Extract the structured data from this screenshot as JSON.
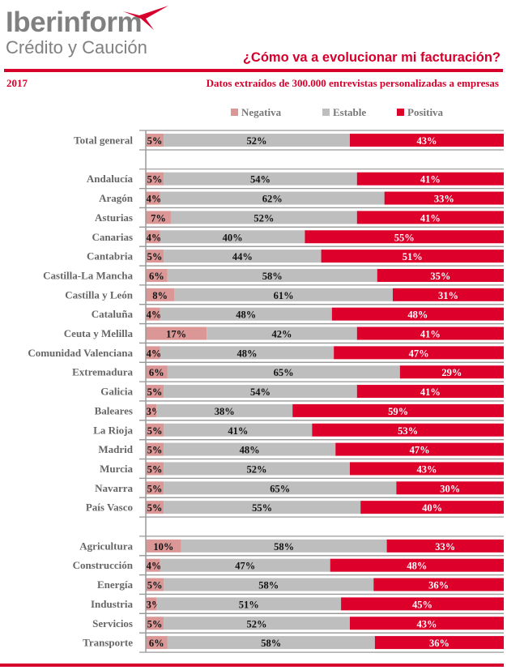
{
  "header": {
    "logo_main": "Iberinform",
    "logo_sub": "Crédito y Caución",
    "title": "¿Cómo va a evolucionar mi facturación?",
    "year": "2017",
    "subtitle": "Datos extraídos de 300.000 entrevistas personalizadas a empresas"
  },
  "colors": {
    "negativa": "#db9696",
    "estable": "#bebebe",
    "positiva": "#dc002b",
    "accent": "#d7002c"
  },
  "chart_data": {
    "type": "bar",
    "orientation": "horizontal",
    "stacked": "percent",
    "legend_position": "top",
    "xlim": [
      0,
      100
    ],
    "grid": true,
    "series": [
      {
        "name": "Negativa",
        "color": "#db9696"
      },
      {
        "name": "Estable",
        "color": "#bebebe"
      },
      {
        "name": "Positiva",
        "color": "#dc002b"
      }
    ],
    "groups": [
      {
        "rows": [
          {
            "category": "Total general",
            "values": [
              5,
              52,
              43
            ]
          }
        ]
      },
      {
        "rows": [
          {
            "category": "Andalucía",
            "values": [
              5,
              54,
              41
            ]
          },
          {
            "category": "Aragón",
            "values": [
              4,
              62,
              33
            ]
          },
          {
            "category": "Asturias",
            "values": [
              7,
              52,
              41
            ]
          },
          {
            "category": "Canarias",
            "values": [
              4,
              40,
              55
            ]
          },
          {
            "category": "Cantabria",
            "values": [
              5,
              44,
              51
            ]
          },
          {
            "category": "Castilla-La Mancha",
            "values": [
              6,
              58,
              35
            ]
          },
          {
            "category": "Castilla y León",
            "values": [
              8,
              61,
              31
            ]
          },
          {
            "category": "Cataluña",
            "values": [
              4,
              48,
              48
            ]
          },
          {
            "category": "Ceuta y Melilla",
            "values": [
              17,
              42,
              41
            ]
          },
          {
            "category": "Comunidad Valenciana",
            "values": [
              4,
              48,
              47
            ]
          },
          {
            "category": "Extremadura",
            "values": [
              6,
              65,
              29
            ]
          },
          {
            "category": "Galicia",
            "values": [
              5,
              54,
              41
            ]
          },
          {
            "category": "Baleares",
            "values": [
              3,
              38,
              59
            ]
          },
          {
            "category": "La Rioja",
            "values": [
              5,
              41,
              53
            ]
          },
          {
            "category": "Madrid",
            "values": [
              5,
              48,
              47
            ]
          },
          {
            "category": "Murcia",
            "values": [
              5,
              52,
              43
            ]
          },
          {
            "category": "Navarra",
            "values": [
              5,
              65,
              30
            ]
          },
          {
            "category": "País Vasco",
            "values": [
              5,
              55,
              40
            ]
          }
        ]
      },
      {
        "rows": [
          {
            "category": "Agricultura",
            "values": [
              10,
              58,
              33
            ]
          },
          {
            "category": "Construcción",
            "values": [
              4,
              47,
              48
            ]
          },
          {
            "category": "Energía",
            "values": [
              5,
              58,
              36
            ]
          },
          {
            "category": "Industria",
            "values": [
              3,
              51,
              45
            ]
          },
          {
            "category": "Servicios",
            "values": [
              5,
              52,
              43
            ]
          },
          {
            "category": "Transporte",
            "values": [
              6,
              58,
              36
            ]
          }
        ]
      }
    ]
  }
}
